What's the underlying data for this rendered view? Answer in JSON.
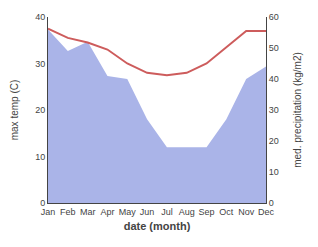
{
  "chart_data": {
    "type": "line",
    "categories": [
      "Jan",
      "Feb",
      "Mar",
      "Apr",
      "May",
      "Jun",
      "Jul",
      "Aug",
      "Sep",
      "Oct",
      "Nov",
      "Dec"
    ],
    "series": [
      {
        "type": "line",
        "color": "#cd5c5c",
        "values": [
          37.5,
          35.5,
          34.5,
          33.0,
          30.0,
          28.0,
          27.5,
          28.0,
          30.0,
          33.5,
          37.0,
          37.0
        ]
      },
      {
        "type": "area",
        "color": "#aab4e8",
        "axis": "y2",
        "values": [
          56,
          49,
          52,
          41,
          40,
          27,
          18,
          18,
          18,
          27,
          40,
          44
        ]
      }
    ],
    "x_label": "date (month)",
    "y_label": "max temp (C)",
    "y2_label": "med. precipitation (kg/m2)",
    "ylim": [
      0,
      40
    ],
    "yticks": [
      0,
      10,
      20,
      30,
      40
    ],
    "y2lim": [
      0,
      60
    ],
    "y2ticks": [
      0,
      10,
      20,
      30,
      40,
      50,
      60
    ],
    "grid": false
  }
}
